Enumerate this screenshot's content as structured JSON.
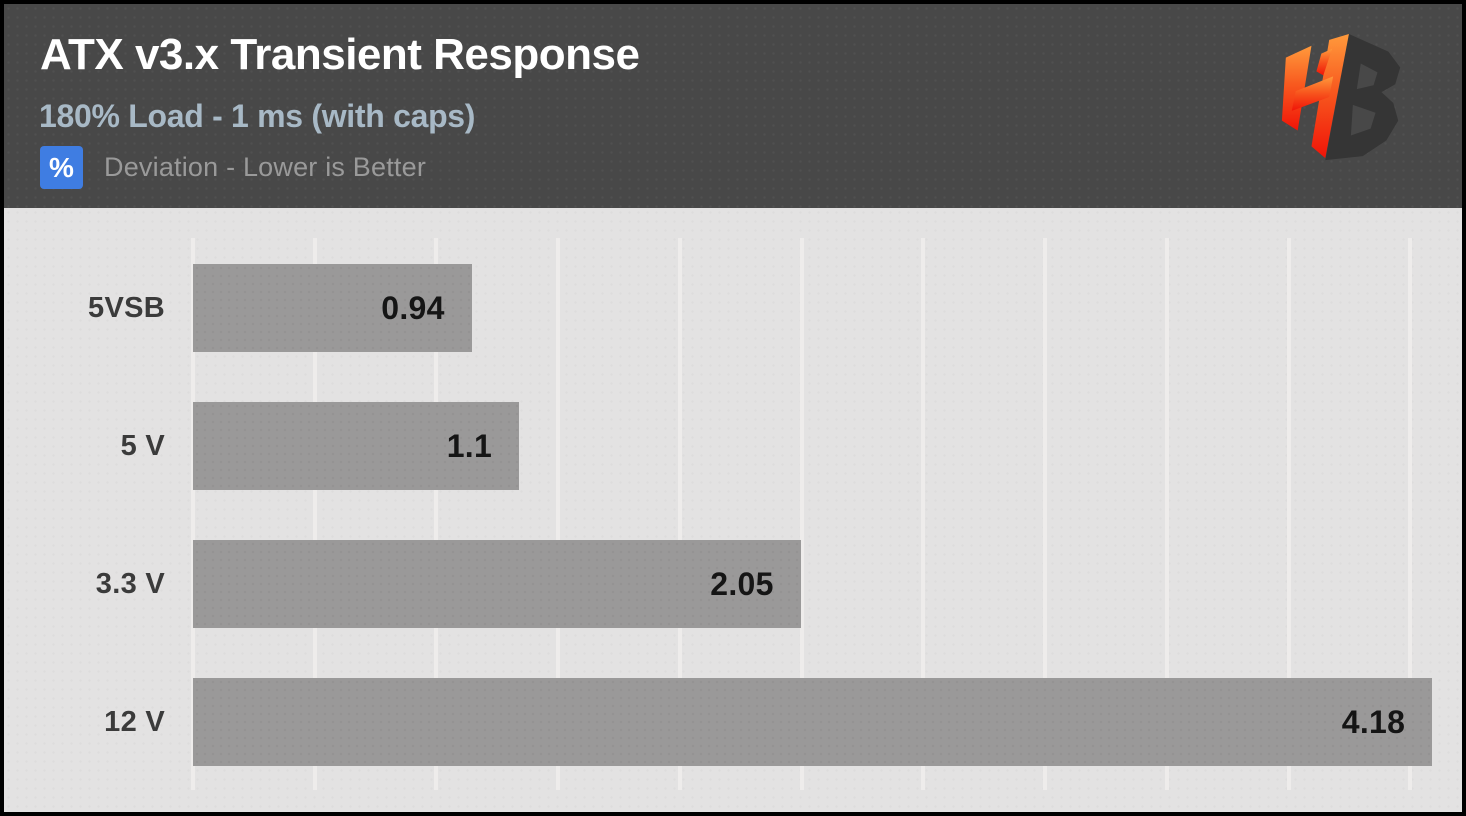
{
  "header": {
    "title": "ATX v3.x Transient Response",
    "subtitle": "180% Load - 1 ms (with caps)",
    "unit_badge": "%",
    "note": "Deviation - Lower is Better"
  },
  "icons": {
    "unit_badge": "percent-square",
    "logo": "hardware-busters-hb-monogram"
  },
  "chart_data": {
    "type": "bar",
    "orientation": "horizontal",
    "title": "ATX v3.x Transient Response",
    "subtitle": "180% Load - 1 ms (with caps)",
    "note": "Deviation - Lower is Better",
    "unit": "%",
    "value_direction": "lower-is-better",
    "categories": [
      "5VSB",
      "5 V",
      "3.3 V",
      "12 V"
    ],
    "values": [
      0.94,
      1.1,
      2.05,
      4.18
    ],
    "value_labels": [
      "0.94",
      "1.1",
      "2.05",
      "4.18"
    ],
    "xlim": [
      0,
      4.26
    ],
    "legend": false,
    "grid": "vertical",
    "gridlines": {
      "count": 11,
      "step_pct": 9.639
    },
    "colors": {
      "header_bg": "#484848",
      "plot_bg": "#e3e2e2",
      "bar": "#9a9999",
      "grid": "#eeeceb",
      "value_label": "#151515",
      "category_label": "#3b3b3b",
      "subtitle": "#a8b9c6",
      "note": "#9a9a9a",
      "accent": "#3f7de2",
      "title": "#ffffff"
    }
  }
}
